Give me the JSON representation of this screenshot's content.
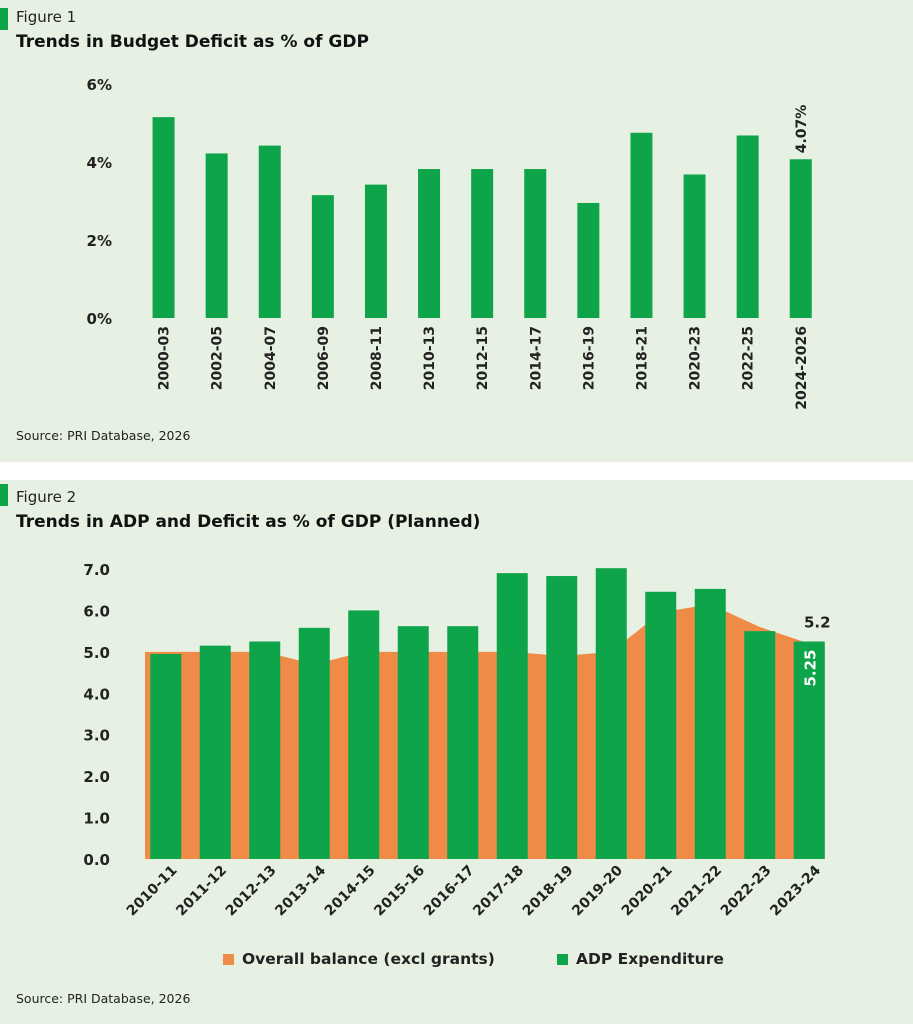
{
  "figure1": {
    "label": "Figure 1",
    "source": "Source: PRI Database, 2026",
    "colors": {
      "bar": "#0ea44a",
      "text": "#222222",
      "marker": "#0ea44a"
    },
    "chart_data": {
      "type": "bar",
      "title": "Trends in Budget Deficit as % of GDP",
      "xlabel": "",
      "ylabel": "",
      "categories": [
        "2000-03",
        "2002-05",
        "2004-07",
        "2006-09",
        "2008-11",
        "2010-13",
        "2012-15",
        "2014-17",
        "2016-19",
        "2018-21",
        "2020-23",
        "2022-25",
        "2024-2026"
      ],
      "values": [
        5.15,
        4.22,
        4.42,
        3.15,
        3.42,
        3.82,
        3.82,
        3.82,
        2.95,
        4.75,
        3.68,
        4.68,
        4.07
      ],
      "ylim": [
        0,
        6
      ],
      "yticks": [
        0,
        2,
        4,
        6
      ],
      "ytick_labels": [
        "0%",
        "2%",
        "4%",
        "6%"
      ],
      "data_labels": [
        {
          "category": "2024-2026",
          "text": "4.07%"
        }
      ],
      "grid": false,
      "legend": "none"
    }
  },
  "figure2": {
    "label": "Figure 2",
    "source": "Source: PRI Database, 2026",
    "colors": {
      "adp": "#0ea44a",
      "balance": "#f08a47",
      "text": "#222222"
    },
    "chart_data": {
      "type": "bar",
      "title": "Trends in ADP and Deficit as % of GDP (Planned)",
      "xlabel": "",
      "ylabel": "",
      "categories": [
        "2010-11",
        "2011-12",
        "2012-13",
        "2013-14",
        "2014-15",
        "2015-16",
        "2016-17",
        "2017-18",
        "2018-19",
        "2019-20",
        "2020-21",
        "2021-22",
        "2022-23",
        "2023-24"
      ],
      "series": [
        {
          "name": "Overall balance (excl grants)",
          "kind": "area",
          "values": [
            5.0,
            5.0,
            5.0,
            4.7,
            5.0,
            5.0,
            5.0,
            5.0,
            4.9,
            5.0,
            5.95,
            6.15,
            5.6,
            5.2
          ]
        },
        {
          "name": "ADP Expenditure",
          "kind": "bar",
          "values": [
            4.95,
            5.15,
            5.25,
            5.58,
            6.0,
            5.62,
            5.62,
            6.9,
            6.83,
            7.02,
            6.45,
            6.52,
            5.5,
            5.25
          ]
        }
      ],
      "ylim": [
        0,
        7
      ],
      "yticks": [
        0,
        1,
        2,
        3,
        4,
        5,
        6,
        7
      ],
      "ytick_labels": [
        "0.0",
        "1.0",
        "2.0",
        "3.0",
        "4.0",
        "5.0",
        "6.0",
        "7.0"
      ],
      "data_labels": [
        {
          "series": "Overall balance (excl grants)",
          "category": "2023-24",
          "text": "5.2"
        },
        {
          "series": "ADP Expenditure",
          "category": "2023-24",
          "text": "5.25"
        }
      ],
      "grid": false,
      "legend": "bottom"
    }
  }
}
